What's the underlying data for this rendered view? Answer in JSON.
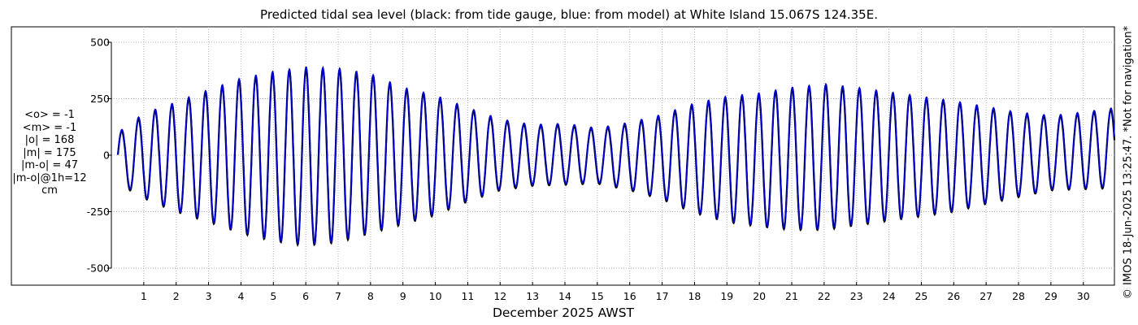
{
  "chart_data": {
    "type": "line",
    "title": "Predicted tidal sea level (black: from tide gauge, blue: from model) at White Island 15.067S 124.35E.",
    "xlabel": "December 2025 AWST",
    "ylabel": "",
    "ylim": [
      -500,
      500
    ],
    "yticks": [
      -500,
      -250,
      0,
      250,
      500
    ],
    "y_tick_labels": [
      "-500",
      "-250",
      "0",
      "250",
      "500"
    ],
    "xlim": [
      0.0,
      30.96
    ],
    "x_ticks": [
      1,
      2,
      3,
      4,
      5,
      6,
      7,
      8,
      9,
      10,
      11,
      12,
      13,
      14,
      15,
      16,
      17,
      18,
      19,
      20,
      21,
      22,
      23,
      24,
      25,
      26,
      27,
      28,
      29,
      30
    ],
    "x_tick_labels": [
      "1",
      "2",
      "3",
      "4",
      "5",
      "6",
      "7",
      "8",
      "9",
      "10",
      "11",
      "12",
      "13",
      "14",
      "15",
      "16",
      "17",
      "18",
      "19",
      "20",
      "21",
      "22",
      "23",
      "24",
      "25",
      "26",
      "27",
      "28",
      "29",
      "30"
    ],
    "grid": true,
    "series_colors": [
      "#000000",
      "#0000cc"
    ],
    "x_unit": "day of December 2025",
    "semidiurnal_period_days": 0.5175,
    "first_high_water_day": 0.32,
    "envelope_day": [
      0.2,
      1,
      2,
      3,
      4,
      5,
      6,
      7,
      8,
      9,
      10,
      11,
      12,
      13,
      14,
      15,
      16,
      17,
      18,
      19,
      20,
      21,
      22,
      23,
      24,
      25,
      26,
      27,
      28,
      29,
      30,
      30.96
    ],
    "envelope_high": [
      100,
      185,
      235,
      290,
      340,
      370,
      390,
      385,
      360,
      300,
      265,
      210,
      160,
      135,
      140,
      120,
      145,
      180,
      230,
      260,
      275,
      300,
      315,
      300,
      280,
      260,
      240,
      215,
      190,
      175,
      190,
      210
    ],
    "envelope_low": [
      -120,
      -185,
      -245,
      -290,
      -340,
      -375,
      -395,
      -380,
      -340,
      -300,
      -260,
      -200,
      -150,
      -130,
      -125,
      -120,
      -150,
      -190,
      -250,
      -290,
      -310,
      -325,
      -325,
      -305,
      -285,
      -265,
      -245,
      -210,
      -180,
      -150,
      -145,
      -140
    ],
    "stats": [
      "<o> = -1",
      "<m> = -1",
      "|o| = 168",
      "|m| = 175",
      "|m-o| = 47",
      "|m-o|@1h=12",
      "cm"
    ],
    "copyright": "© IMOS 18-Jun-2025 13:25:47. *Not for navigation*"
  }
}
